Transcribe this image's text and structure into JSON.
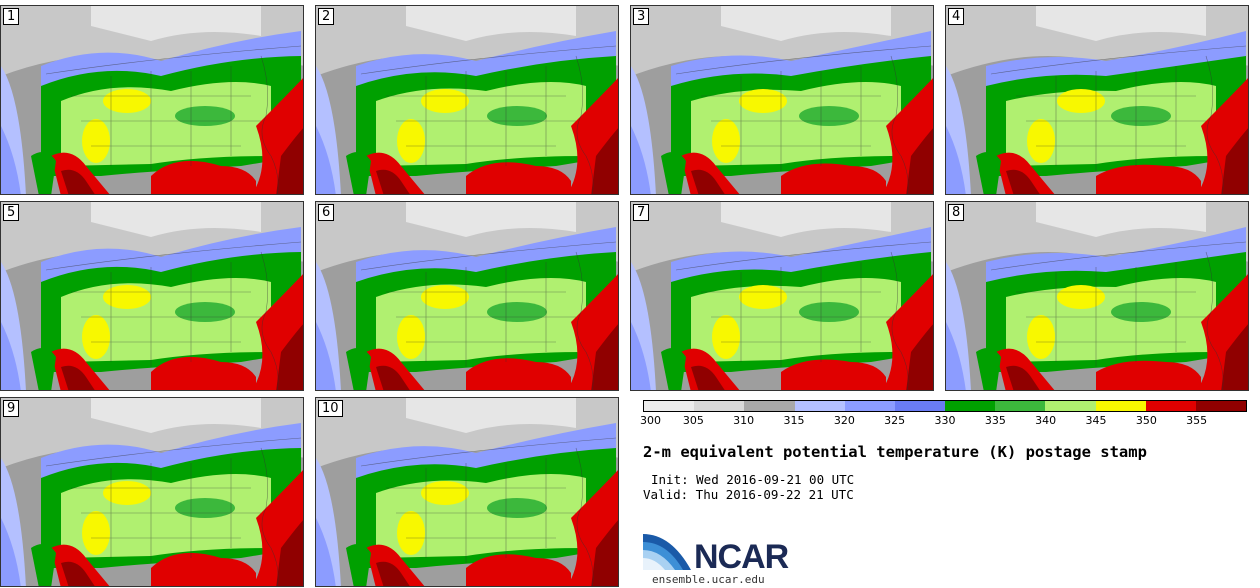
{
  "panels": [
    {
      "label": "1"
    },
    {
      "label": "2"
    },
    {
      "label": "3"
    },
    {
      "label": "4"
    },
    {
      "label": "5"
    },
    {
      "label": "6"
    },
    {
      "label": "7"
    },
    {
      "label": "8"
    },
    {
      "label": "9"
    },
    {
      "label": "10"
    }
  ],
  "colorbar": {
    "colors": [
      "#ececec",
      "#d8d8d8",
      "#a8a8a8",
      "#b4c0ff",
      "#8c9cff",
      "#6a7cf4",
      "#00a000",
      "#3cb83c",
      "#b0f070",
      "#f8f800",
      "#e00000",
      "#900000"
    ],
    "ticks": [
      "300",
      "305",
      "310",
      "315",
      "320",
      "325",
      "330",
      "335",
      "340",
      "345",
      "350",
      "355"
    ]
  },
  "title": "2-m equivalent potential temperature (K) postage stamp",
  "init_text": "Init: Wed 2016-09-21 00 UTC",
  "valid_text": "Valid: Thu 2016-09-22 21 UTC",
  "logo": {
    "name": "NCAR",
    "site": "ensemble.ucar.edu"
  }
}
